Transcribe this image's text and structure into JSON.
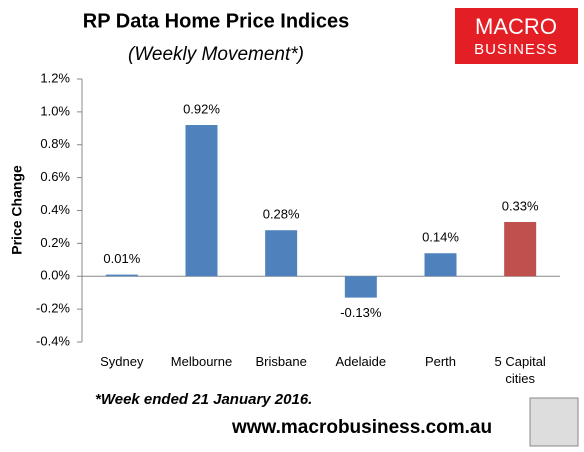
{
  "chart_data": {
    "type": "bar",
    "title": "RP Data Home Price Indices",
    "subtitle": "(Weekly Movement*)",
    "y_label": "Price Change",
    "categories": [
      "Sydney",
      "Melbourne",
      "Brisbane",
      "Adelaide",
      "Perth",
      "5 Capital cities"
    ],
    "values": [
      0.01,
      0.92,
      0.28,
      -0.13,
      0.14,
      0.33
    ],
    "value_labels": [
      "0.01%",
      "0.92%",
      "0.28%",
      "-0.13%",
      "0.14%",
      "0.33%"
    ],
    "colors": [
      "#4f81bd",
      "#4f81bd",
      "#4f81bd",
      "#4f81bd",
      "#4f81bd",
      "#c0504d"
    ],
    "ylim": [
      -0.4,
      1.2
    ],
    "yticks": [
      {
        "value": -0.4,
        "label": "-0.4%"
      },
      {
        "value": -0.2,
        "label": "-0.2%"
      },
      {
        "value": 0,
        "label": "0.0%"
      },
      {
        "value": 0.2,
        "label": "0.2%"
      },
      {
        "value": 0.4,
        "label": "0.4%"
      },
      {
        "value": 0.6,
        "label": "0.6%"
      },
      {
        "value": 0.8,
        "label": "0.8%"
      },
      {
        "value": 1.0,
        "label": "1.0%"
      },
      {
        "value": 1.2,
        "label": "1.2%"
      }
    ],
    "grid": false,
    "footnote": "*Week ended 21 January 2016."
  },
  "logo": {
    "line1": "MACRO",
    "line2": "BUSINESS"
  },
  "website": "www.macrobusiness.com.au"
}
